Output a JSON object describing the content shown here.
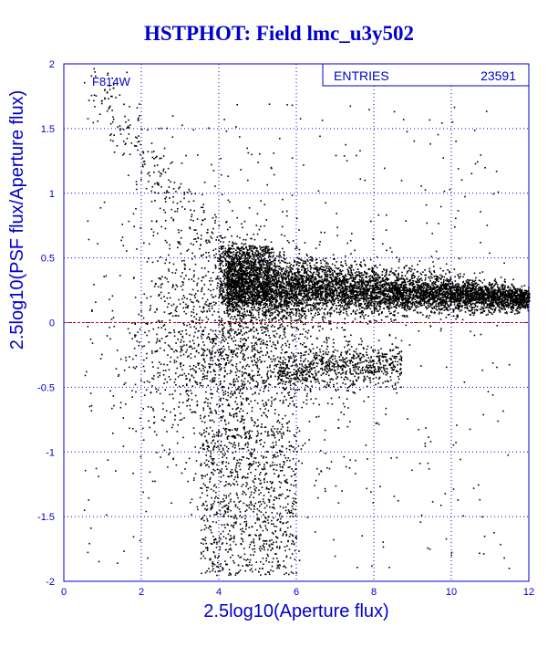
{
  "title": "HSTPHOT: Field lmc_u3y502",
  "chart_data": {
    "type": "scatter",
    "title": "HSTPHOT: Field lmc_u3y502",
    "xlabel": "2.5log10(Aperture flux)",
    "ylabel": "2.5log10(PSF flux/Aperture flux)",
    "xlim": [
      0,
      12
    ],
    "ylim": [
      -2,
      2
    ],
    "x_ticks": [
      "0",
      "2",
      "4",
      "6",
      "8",
      "10",
      "12"
    ],
    "y_ticks": [
      "-2",
      "-1.5",
      "-1",
      "-0.5",
      "0",
      "0.5",
      "1",
      "1.5",
      "2"
    ],
    "grid": true,
    "reference_line": {
      "y": 0,
      "color": "#cc0000",
      "style": "dashed"
    },
    "annotation": "F814W",
    "stats_box": {
      "label": "ENTRIES",
      "value": "23591"
    },
    "point_color": "#000000",
    "axis_color": "#0000cc"
  }
}
